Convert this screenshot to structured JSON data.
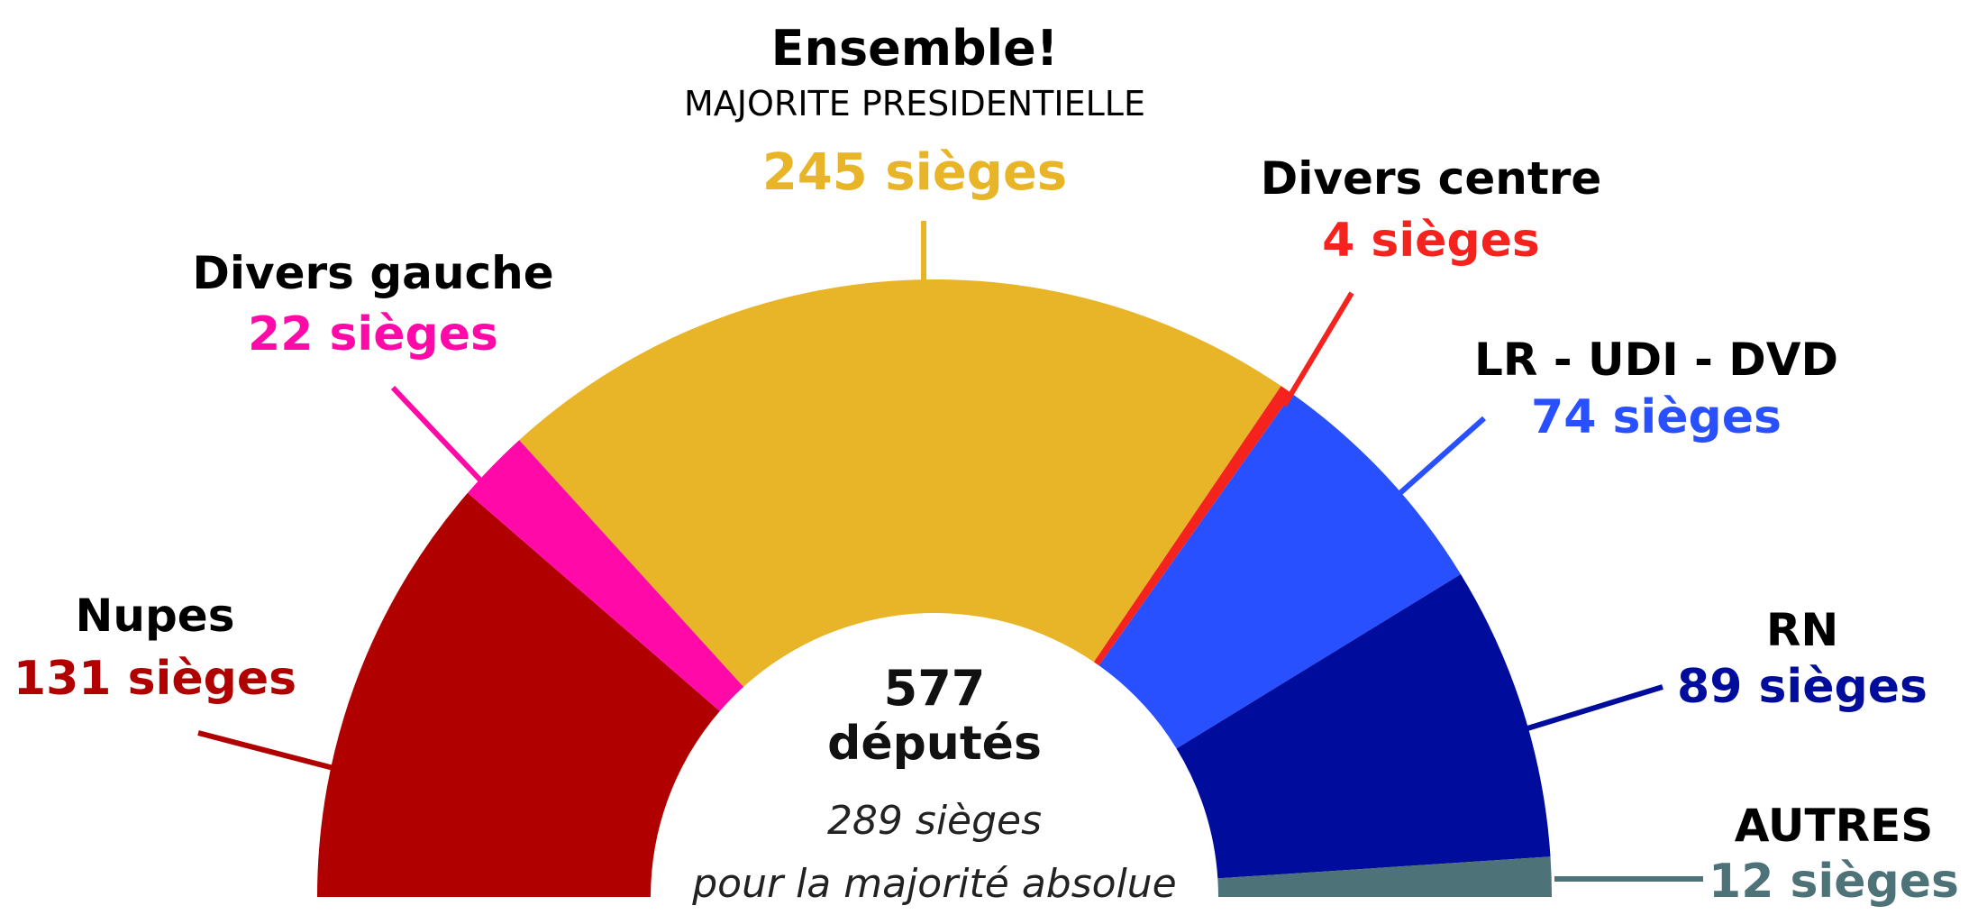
{
  "chart_data": {
    "type": "hemicycle",
    "total": 577,
    "parties": [
      {
        "name": "Nupes",
        "subtitle": "",
        "seats": 131,
        "seats_label": "131 sièges",
        "color": "#B00000"
      },
      {
        "name": "Divers gauche",
        "subtitle": "",
        "seats": 22,
        "seats_label": "22 sièges",
        "color": "#FF0AA8"
      },
      {
        "name": "Ensemble!",
        "subtitle": "MAJORITE PRESIDENTIELLE",
        "seats": 245,
        "seats_label": "245 sièges",
        "color": "#E8B428"
      },
      {
        "name": "Divers centre",
        "subtitle": "",
        "seats": 4,
        "seats_label": "4 sièges",
        "color": "#F5231E"
      },
      {
        "name": "LR - UDI - DVD",
        "subtitle": "",
        "seats": 74,
        "seats_label": "74 sièges",
        "color": "#2850FF"
      },
      {
        "name": "RN",
        "subtitle": "",
        "seats": 89,
        "seats_label": "89 sièges",
        "color": "#000C9C"
      },
      {
        "name": "AUTRES",
        "subtitle": "",
        "seats": 12,
        "seats_label": "12 sièges",
        "color": "#4D7278"
      }
    ],
    "center": {
      "line1": "577",
      "line2": "députés",
      "line3": "289 sièges",
      "line4": "pour la majorité absolue"
    }
  }
}
